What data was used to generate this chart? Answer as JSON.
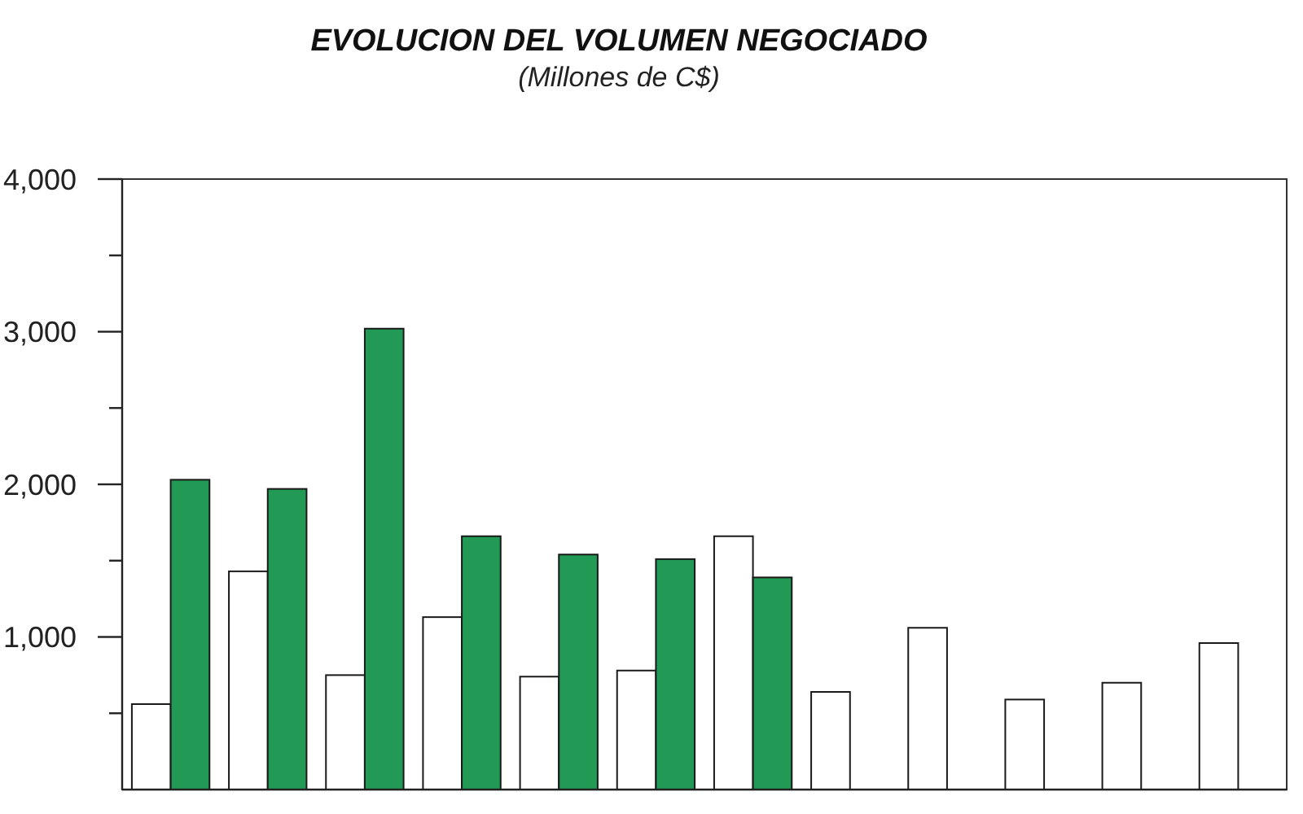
{
  "chart_data": {
    "type": "bar",
    "title": "EVOLUCION DEL VOLUMEN NEGOCIADO",
    "subtitle": "(Millones de C$)",
    "categories": [
      null,
      null,
      null,
      null,
      null,
      null,
      null,
      null,
      null,
      null,
      null,
      null
    ],
    "series": [
      {
        "color": "#ffffff",
        "values": [
          560,
          1430,
          750,
          1130,
          740,
          780,
          1660,
          640,
          1060,
          590,
          700,
          960
        ]
      },
      {
        "color": "#229954",
        "values": [
          2030,
          1970,
          3020,
          1660,
          1540,
          1510,
          1390,
          null,
          null,
          null,
          null,
          null
        ]
      }
    ],
    "ylim": [
      0,
      4000
    ],
    "yticks": [
      {
        "value": 500,
        "label": null
      },
      {
        "value": 1000,
        "label": "1,000"
      },
      {
        "value": 1500,
        "label": null
      },
      {
        "value": 2000,
        "label": "2,000"
      },
      {
        "value": 2500,
        "label": null
      },
      {
        "value": 3000,
        "label": "3,000"
      },
      {
        "value": 3500,
        "label": null
      },
      {
        "value": 4000,
        "label": "4,000"
      }
    ]
  }
}
